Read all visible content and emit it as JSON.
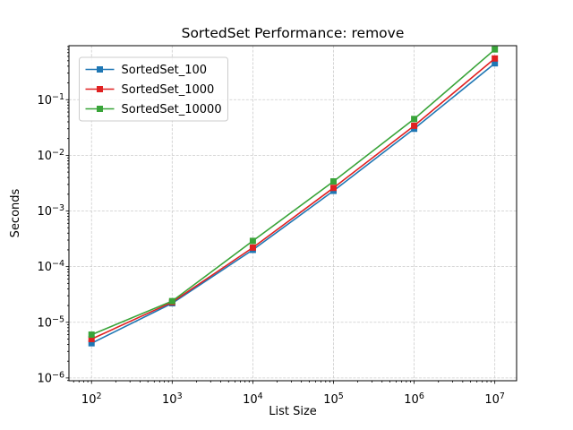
{
  "chart_data": {
    "type": "line",
    "title": "SortedSet Performance: remove",
    "xlabel": "List Size",
    "ylabel": "Seconds",
    "x": [
      100,
      1000,
      10000,
      100000,
      1000000,
      10000000
    ],
    "series": [
      {
        "name": "SortedSet_100",
        "color": "#1f77b4",
        "marker": "square",
        "values": [
          4.2e-06,
          2.2e-05,
          0.0002,
          0.0023,
          0.03,
          0.45
        ]
      },
      {
        "name": "SortedSet_1000",
        "color": "#e02121",
        "marker": "square",
        "values": [
          5e-06,
          2.3e-05,
          0.00022,
          0.0026,
          0.034,
          0.55
        ]
      },
      {
        "name": "SortedSet_10000",
        "color": "#39a439",
        "marker": "square",
        "values": [
          6e-06,
          2.4e-05,
          0.00029,
          0.0034,
          0.045,
          0.8
        ]
      }
    ],
    "axes": {
      "xscale": "log",
      "yscale": "log",
      "xlim_log": [
        1.72,
        7.27
      ],
      "ylim_log": [
        -6.05,
        -0.03
      ],
      "x_tick_exponents": [
        2,
        3,
        4,
        5,
        6,
        7
      ],
      "y_tick_exponents": [
        -6,
        -5,
        -4,
        -3,
        -2,
        -1
      ],
      "grid": true,
      "grid_style": "dashed",
      "grid_color": "#cccccc"
    },
    "legend": {
      "position": "upper left",
      "entries": [
        "SortedSet_100",
        "SortedSet_1000",
        "SortedSet_10000"
      ]
    }
  }
}
